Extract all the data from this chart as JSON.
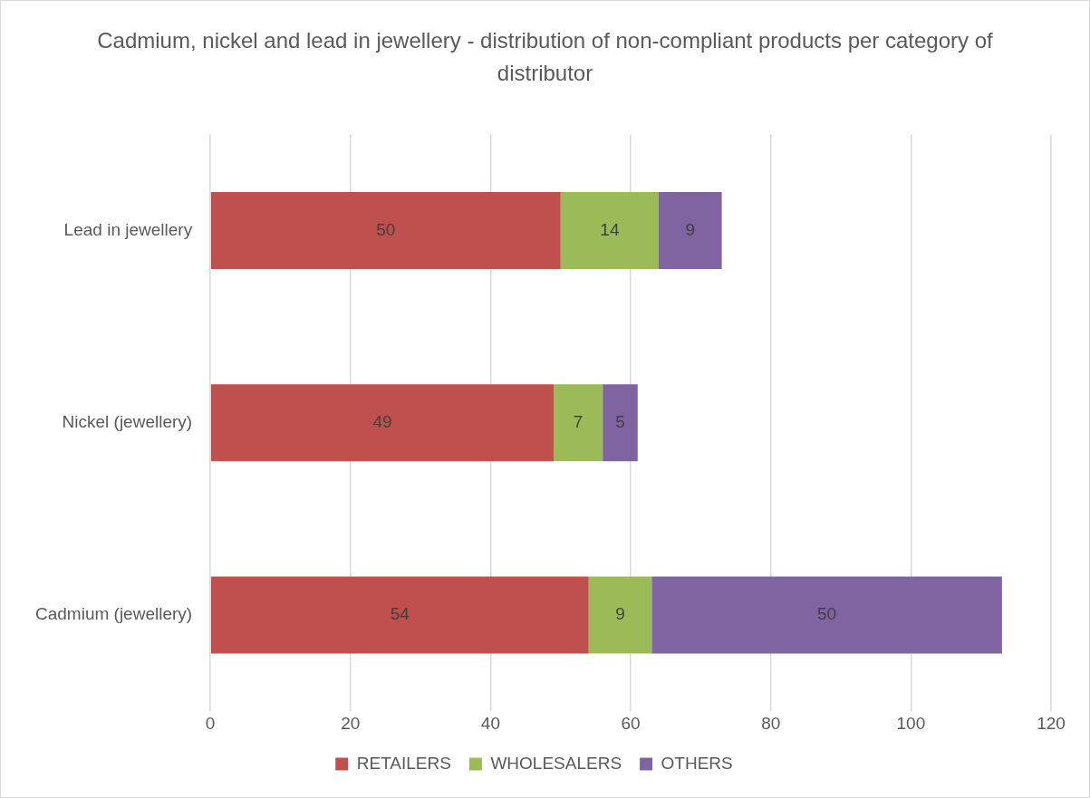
{
  "chart_data": {
    "type": "bar",
    "orientation": "horizontal",
    "stacked": true,
    "title": "Cadmium, nickel and lead in jewellery - distribution of non-compliant products per category of distributor",
    "categories": [
      "Lead in jewellery",
      "Nickel (jewellery)",
      "Cadmium (jewellery)"
    ],
    "series": [
      {
        "name": "RETAILERS",
        "color": "#c0504d",
        "values": [
          50,
          49,
          54
        ]
      },
      {
        "name": "WHOLESALERS",
        "color": "#9bbb59",
        "values": [
          14,
          7,
          9
        ]
      },
      {
        "name": "OTHERS",
        "color": "#8064a2",
        "values": [
          9,
          5,
          50
        ]
      }
    ],
    "xlim": [
      0,
      120
    ],
    "xticks": [
      0,
      20,
      40,
      60,
      80,
      100,
      120
    ],
    "grid": "x",
    "legend": "bottom",
    "data_labels": true
  }
}
